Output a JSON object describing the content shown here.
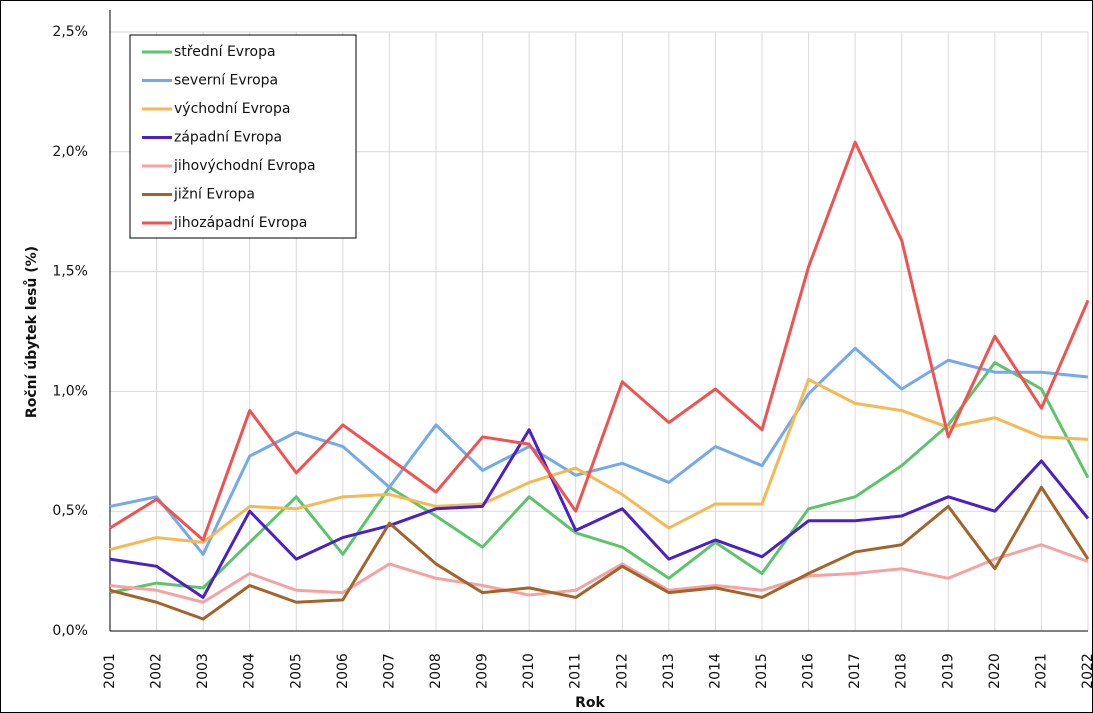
{
  "chart_data": {
    "type": "line",
    "x_label": "Rok",
    "y_label": "Roční úbytek lesů (%)",
    "categories": [
      "2001",
      "2002",
      "2003",
      "2004",
      "2005",
      "2006",
      "2007",
      "2008",
      "2009",
      "2010",
      "2011",
      "2012",
      "2013",
      "2014",
      "2015",
      "2016",
      "2017",
      "2018",
      "2019",
      "2020",
      "2021",
      "2022"
    ],
    "ylim": [
      0,
      2.5
    ],
    "yticks": [
      {
        "value": 0,
        "label": "0,0%"
      },
      {
        "value": 0.5,
        "label": "0,5%"
      },
      {
        "value": 1,
        "label": "1,0%"
      },
      {
        "value": 1.5,
        "label": "1,5%"
      },
      {
        "value": 2,
        "label": "2,0%"
      },
      {
        "value": 2.5,
        "label": "2,5%"
      }
    ],
    "grid": true,
    "legend": "upper left",
    "series": [
      {
        "name": "střední Evropa",
        "color": "#5ec46b",
        "values": [
          0.16,
          0.2,
          0.18,
          0.37,
          0.56,
          0.32,
          0.6,
          0.48,
          0.35,
          0.56,
          0.41,
          0.35,
          0.22,
          0.37,
          0.24,
          0.51,
          0.56,
          0.69,
          0.86,
          1.12,
          1.01,
          0.64
        ]
      },
      {
        "name": "severní Evropa",
        "color": "#72aaea",
        "values": [
          0.52,
          0.56,
          0.32,
          0.73,
          0.83,
          0.77,
          0.6,
          0.86,
          0.67,
          0.77,
          0.65,
          0.7,
          0.62,
          0.77,
          0.69,
          0.99,
          1.18,
          1.01,
          1.13,
          1.08,
          1.08,
          1.06
        ]
      },
      {
        "name": "východní Evropa",
        "color": "#f6b853",
        "values": [
          0.34,
          0.39,
          0.37,
          0.52,
          0.51,
          0.56,
          0.57,
          0.52,
          0.53,
          0.62,
          0.68,
          0.57,
          0.43,
          0.53,
          0.53,
          1.05,
          0.95,
          0.92,
          0.85,
          0.89,
          0.81,
          0.8
        ]
      },
      {
        "name": "západní Evropa",
        "color": "#4b20c4",
        "values": [
          0.3,
          0.27,
          0.14,
          0.5,
          0.3,
          0.39,
          0.44,
          0.51,
          0.52,
          0.84,
          0.42,
          0.51,
          0.3,
          0.38,
          0.31,
          0.46,
          0.46,
          0.48,
          0.56,
          0.5,
          0.71,
          0.47
        ]
      },
      {
        "name": "jihovýchodní Evropa",
        "color": "#f5a2a2",
        "values": [
          0.19,
          0.17,
          0.12,
          0.24,
          0.17,
          0.16,
          0.28,
          0.22,
          0.19,
          0.15,
          0.17,
          0.28,
          0.17,
          0.19,
          0.17,
          0.23,
          0.24,
          0.26,
          0.22,
          0.3,
          0.36,
          0.29
        ]
      },
      {
        "name": "jižní Evropa",
        "color": "#a3642b",
        "values": [
          0.17,
          0.12,
          0.05,
          0.19,
          0.12,
          0.13,
          0.45,
          0.28,
          0.16,
          0.18,
          0.14,
          0.27,
          0.16,
          0.18,
          0.14,
          0.24,
          0.33,
          0.36,
          0.52,
          0.26,
          0.6,
          0.3
        ]
      },
      {
        "name": "jihozápadní Evropa",
        "color": "#f05252",
        "values": [
          0.43,
          0.55,
          0.38,
          0.92,
          0.66,
          0.86,
          0.72,
          0.58,
          0.81,
          0.78,
          0.5,
          1.04,
          0.87,
          1.01,
          0.84,
          1.52,
          2.04,
          1.63,
          0.81,
          1.23,
          0.93,
          1.38
        ]
      }
    ]
  }
}
